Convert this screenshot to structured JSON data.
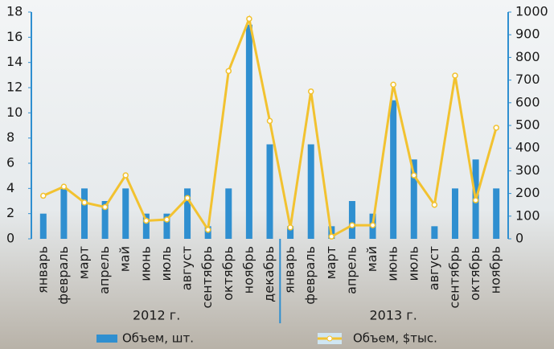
{
  "chart_data": {
    "type": "bar-line",
    "categories": [
      "январь",
      "февраль",
      "март",
      "апрель",
      "май",
      "июнь",
      "июль",
      "август",
      "сентябрь",
      "октябрь",
      "ноябрь",
      "декабрь",
      "январь",
      "февраль",
      "март",
      "апрель",
      "май",
      "июнь",
      "июль",
      "август",
      "сентябрь",
      "октябрь",
      "ноябрь"
    ],
    "groups": [
      "2012 г.",
      "2013 г."
    ],
    "series": [
      {
        "name": "Объем, шт.",
        "type": "bar",
        "color": "#2f8fd0",
        "values": [
          2,
          4,
          4,
          3,
          4,
          2,
          2,
          4,
          1,
          4,
          17,
          7.5,
          1,
          7.5,
          1,
          3,
          2,
          11,
          6.3,
          1,
          4,
          6.3,
          4
        ]
      },
      {
        "name": "Объем, $тыс.",
        "type": "line",
        "axis": "y2",
        "color": "#f2c230",
        "values": [
          190,
          230,
          160,
          140,
          280,
          80,
          85,
          180,
          40,
          740,
          970,
          520,
          50,
          650,
          10,
          60,
          60,
          680,
          280,
          150,
          720,
          170,
          490
        ]
      }
    ],
    "ylim": [
      0,
      18
    ],
    "yticks": [
      0,
      2,
      4,
      6,
      8,
      10,
      12,
      14,
      16,
      18
    ],
    "y2lim": [
      0,
      1000
    ],
    "y2ticks": [
      0,
      100,
      200,
      300,
      400,
      500,
      600,
      700,
      800,
      900,
      1000
    ]
  }
}
